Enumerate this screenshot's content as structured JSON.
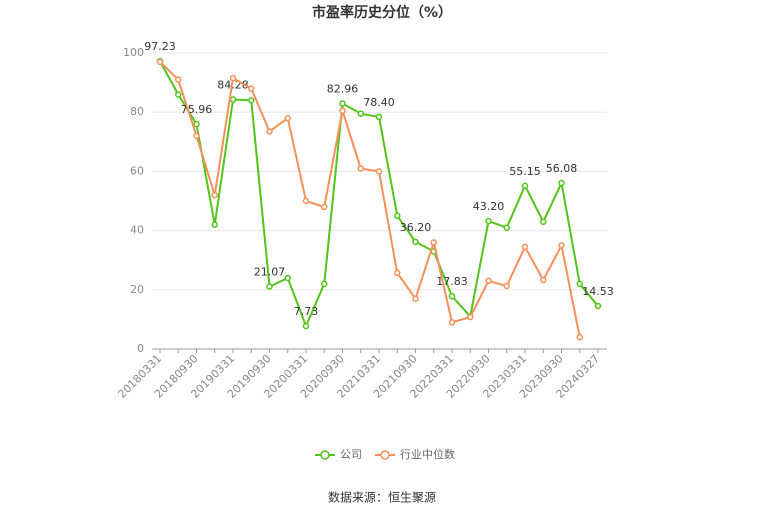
{
  "chart_data": {
    "type": "line",
    "title": "市盈率历史分位（%）",
    "source": "数据来源：恒生聚源",
    "categories": [
      "20180331",
      null,
      "20180930",
      null,
      "20190331",
      null,
      "20190930",
      null,
      "20200331",
      null,
      "20200930",
      null,
      "20210331",
      null,
      "20210930",
      null,
      "20220331",
      null,
      "20220930",
      null,
      "20230331",
      null,
      "20230930",
      null,
      "20240327"
    ],
    "series": [
      {
        "name": "公司",
        "color": "#52c41a",
        "values": [
          97.23,
          86,
          75.96,
          42,
          84.28,
          84,
          21.07,
          24,
          7.73,
          22,
          82.96,
          79.5,
          78.4,
          45,
          36.2,
          33,
          17.83,
          11,
          43.2,
          41,
          55.15,
          43,
          56.08,
          22,
          14.53
        ],
        "value_labels": [
          "97.23",
          null,
          "75.96",
          null,
          "84.28",
          null,
          "21.07",
          null,
          "7.73",
          null,
          "82.96",
          null,
          "78.40",
          null,
          "36.20",
          null,
          "17.83",
          null,
          "43.20",
          null,
          "55.15",
          null,
          "56.08",
          null,
          "14.53"
        ]
      },
      {
        "name": "行业中位数",
        "color": "#f5905a",
        "values": [
          97,
          91,
          72,
          52,
          91.5,
          88,
          73.5,
          78,
          50,
          48,
          80.5,
          61,
          60,
          25.7,
          17,
          36,
          9,
          10.8,
          23,
          21.3,
          34.5,
          23.3,
          35,
          4,
          null
        ]
      }
    ],
    "ylim": [
      0,
      100
    ],
    "yticks": [
      0,
      20,
      40,
      60,
      80,
      100
    ],
    "grid": true
  }
}
